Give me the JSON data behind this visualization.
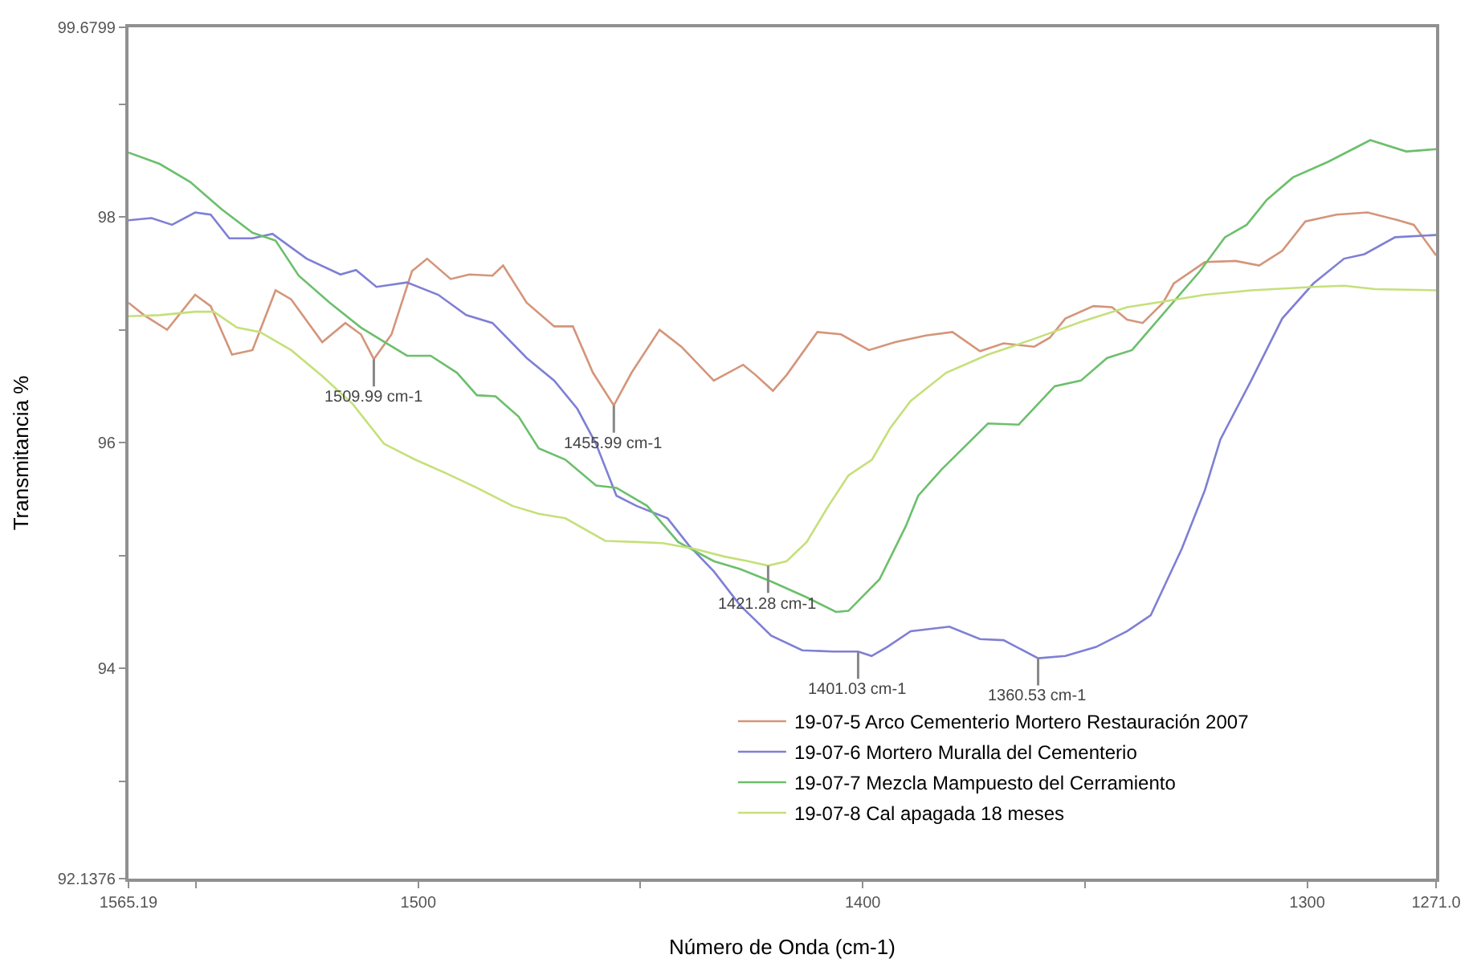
{
  "chart_data": {
    "type": "line",
    "xlabel": "Número de Onda (cm-1)",
    "ylabel": "Transmitancia %",
    "xlim": [
      1565.19,
      1271.0
    ],
    "ylim": [
      92.1376,
      99.6799
    ],
    "xticks": [
      1565.19,
      {
        "value": 1550,
        "label": null
      },
      1500,
      {
        "value": 1450,
        "label": null
      },
      1400,
      {
        "value": 1350,
        "label": null
      },
      1300,
      {
        "value": 1271.0,
        "label": "1271.0"
      }
    ],
    "yticks": [
      92.1376,
      {
        "value": 93,
        "label": null
      },
      94,
      {
        "value": 95,
        "label": null
      },
      96,
      {
        "value": 97,
        "label": null
      },
      98,
      {
        "value": 99,
        "label": null
      },
      99.6799
    ],
    "legend": "bottom right",
    "marker": "none",
    "line_style": "solid",
    "series": [
      {
        "name": "19-07-5 Arco Cementerio Mortero Restauración 2007",
        "color": "#d4957a",
        "x": [
          1565.19,
          1561.7,
          1556.5,
          1550.2,
          1546.7,
          1541.9,
          1537.3,
          1532.1,
          1528.6,
          1521.6,
          1516.4,
          1512.9,
          1509.99,
          1506.0,
          1501.4,
          1498.0,
          1492.7,
          1488.5,
          1483.3,
          1480.9,
          1475.6,
          1469.4,
          1465.2,
          1460.7,
          1455.99,
          1452.0,
          1445.7,
          1440.8,
          1433.5,
          1426.9,
          1424.1,
          1420.2,
          1417.1,
          1410.2,
          1404.9,
          1398.6,
          1392.7,
          1385.8,
          1379.8,
          1373.6,
          1368.3,
          1361.4,
          1357.9,
          1354.4,
          1348.1,
          1343.9,
          1340.5,
          1337.0,
          1332.4,
          1330.0,
          1323.0,
          1316.1,
          1310.8,
          1305.6,
          1300.4,
          1293.4,
          1286.4,
          1279.5,
          1276.0,
          1271.0
        ],
        "values": [
          97.24,
          97.13,
          97.0,
          97.31,
          97.21,
          96.78,
          96.82,
          97.35,
          97.27,
          96.89,
          97.06,
          96.96,
          96.74,
          96.96,
          97.52,
          97.63,
          97.45,
          97.49,
          97.48,
          97.57,
          97.24,
          97.03,
          97.03,
          96.62,
          96.33,
          96.62,
          97.0,
          96.85,
          96.55,
          96.69,
          96.6,
          96.46,
          96.6,
          96.98,
          96.96,
          96.82,
          96.89,
          96.95,
          96.98,
          96.81,
          96.88,
          96.85,
          96.93,
          97.1,
          97.21,
          97.2,
          97.09,
          97.06,
          97.24,
          97.41,
          97.6,
          97.61,
          97.57,
          97.7,
          97.96,
          98.02,
          98.04,
          97.97,
          97.93,
          97.66
        ]
      },
      {
        "name": "19-07-6 Mortero Muralla del Cementerio",
        "color": "#7f7fd5",
        "x": [
          1565.19,
          1560.0,
          1555.4,
          1550.2,
          1546.7,
          1542.5,
          1537.3,
          1532.8,
          1525.1,
          1517.5,
          1514.0,
          1509.4,
          1502.5,
          1495.5,
          1489.2,
          1483.3,
          1475.6,
          1469.4,
          1464.2,
          1460.0,
          1455.4,
          1450.9,
          1443.9,
          1439.1,
          1433.5,
          1427.6,
          1420.6,
          1413.6,
          1406.7,
          1401.03,
          1398.0,
          1394.5,
          1389.2,
          1380.5,
          1373.6,
          1368.3,
          1360.53,
          1354.4,
          1347.5,
          1340.5,
          1335.2,
          1328.2,
          1323.0,
          1319.5,
          1312.6,
          1305.6,
          1298.6,
          1291.7,
          1287.1,
          1280.2,
          1271.0
        ],
        "values": [
          97.97,
          97.99,
          97.93,
          98.04,
          98.02,
          97.81,
          97.81,
          97.85,
          97.63,
          97.49,
          97.53,
          97.38,
          97.42,
          97.31,
          97.13,
          97.06,
          96.75,
          96.55,
          96.3,
          95.99,
          95.53,
          95.44,
          95.33,
          95.09,
          94.86,
          94.56,
          94.29,
          94.16,
          94.15,
          94.15,
          94.11,
          94.19,
          94.33,
          94.37,
          94.26,
          94.25,
          94.09,
          94.11,
          94.19,
          94.33,
          94.47,
          95.06,
          95.58,
          96.03,
          96.55,
          97.1,
          97.41,
          97.63,
          97.67,
          97.82,
          97.84
        ]
      },
      {
        "name": "19-07-7 Mezcla Mampuesto del Cerramiento",
        "color": "#6cbf6c",
        "x": [
          1565.19,
          1558.2,
          1551.3,
          1544.3,
          1537.3,
          1532.1,
          1526.9,
          1519.9,
          1512.9,
          1506.7,
          1502.5,
          1497.2,
          1491.3,
          1486.8,
          1482.6,
          1477.4,
          1472.9,
          1466.9,
          1460.0,
          1455.4,
          1448.5,
          1441.5,
          1433.5,
          1427.6,
          1420.6,
          1412.6,
          1406.0,
          1403.2,
          1396.2,
          1390.3,
          1387.5,
          1382.3,
          1371.8,
          1364.9,
          1356.8,
          1350.9,
          1345.0,
          1339.4,
          1332.4,
          1324.1,
          1318.5,
          1313.6,
          1309.1,
          1303.2,
          1295.2,
          1285.8,
          1277.7,
          1271.0
        ],
        "values": [
          98.57,
          98.47,
          98.31,
          98.07,
          97.86,
          97.79,
          97.48,
          97.24,
          97.02,
          96.87,
          96.77,
          96.77,
          96.62,
          96.42,
          96.41,
          96.23,
          95.95,
          95.85,
          95.62,
          95.6,
          95.44,
          95.12,
          94.95,
          94.88,
          94.77,
          94.63,
          94.5,
          94.51,
          94.79,
          95.26,
          95.53,
          95.76,
          96.17,
          96.16,
          96.5,
          96.55,
          96.75,
          96.82,
          97.14,
          97.52,
          97.82,
          97.93,
          98.15,
          98.35,
          98.49,
          98.68,
          98.58,
          98.6
        ]
      },
      {
        "name": "19-07-8 Cal apagada 18 meses",
        "color": "#c5e07a",
        "x": [
          1565.19,
          1558.2,
          1550.2,
          1546.0,
          1540.8,
          1535.6,
          1528.6,
          1521.6,
          1514.7,
          1507.7,
          1500.7,
          1493.8,
          1486.8,
          1478.8,
          1472.9,
          1466.9,
          1457.9,
          1450.9,
          1445.0,
          1438.0,
          1431.0,
          1425.8,
          1421.28,
          1417.1,
          1412.6,
          1407.7,
          1403.2,
          1397.9,
          1393.8,
          1389.2,
          1381.2,
          1371.8,
          1361.4,
          1350.9,
          1340.5,
          1332.4,
          1323.0,
          1312.6,
          1298.6,
          1291.7,
          1284.7,
          1271.0
        ],
        "values": [
          97.12,
          97.13,
          97.16,
          97.16,
          97.02,
          96.98,
          96.82,
          96.59,
          96.34,
          95.99,
          95.85,
          95.73,
          95.6,
          95.44,
          95.37,
          95.33,
          95.13,
          95.12,
          95.11,
          95.06,
          94.99,
          94.95,
          94.91,
          94.95,
          95.12,
          95.44,
          95.71,
          95.85,
          96.13,
          96.37,
          96.62,
          96.78,
          96.92,
          97.07,
          97.2,
          97.25,
          97.31,
          97.35,
          97.38,
          97.39,
          97.36,
          97.35
        ]
      }
    ],
    "annotations": [
      {
        "text": "1509.99 cm-1",
        "x": 1509.99,
        "y": 96.74
      },
      {
        "text": "1455.99 cm-1",
        "x": 1455.99,
        "y": 96.33
      },
      {
        "text": "1421.28 cm-1",
        "x": 1421.28,
        "y": 94.91
      },
      {
        "text": "1401.03 cm-1",
        "x": 1401.03,
        "y": 94.15
      },
      {
        "text": "1360.53 cm-1",
        "x": 1360.53,
        "y": 94.09
      }
    ]
  }
}
